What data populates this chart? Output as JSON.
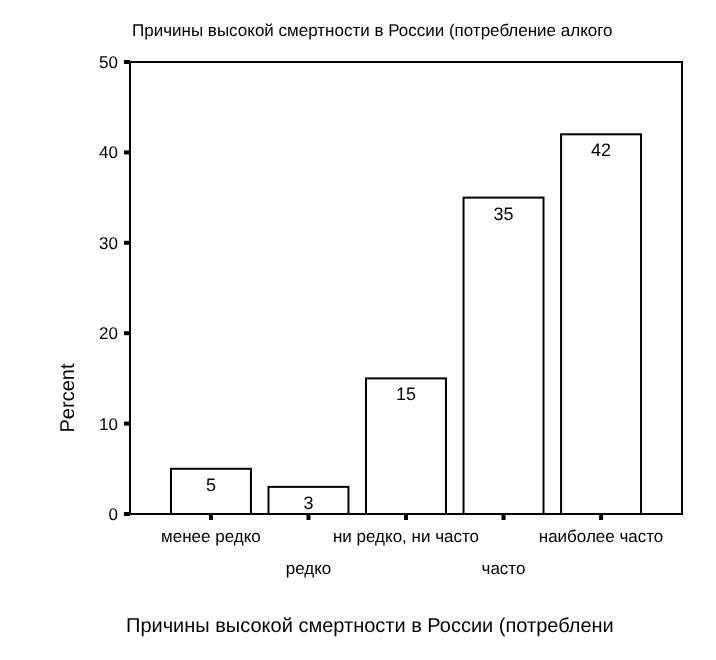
{
  "chart_data": {
    "type": "bar",
    "title": "Причины высокой смертности в России (потребление алкого",
    "xlabel": "Причины высокой смертности в России (потреблени",
    "ylabel": "Percent",
    "categories": [
      "менее редко",
      "редко",
      "ни редко, ни часто",
      "часто",
      "наиболее часто"
    ],
    "values": [
      5,
      3,
      15,
      35,
      42
    ],
    "color": "#ffffff",
    "ylim": [
      0,
      50
    ],
    "yticks": [
      0,
      10,
      20,
      30,
      40,
      50
    ],
    "data_labels": true
  }
}
